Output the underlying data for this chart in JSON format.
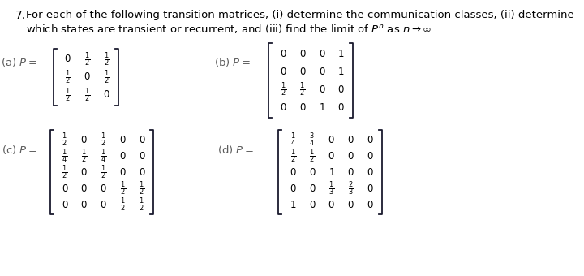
{
  "title_number": "7.",
  "title_text": "For each of the following transition matrices, (i) determine the communication classes, (ii) determine\nwhich states are transient or recurrent, and (iii) find the limit of $P^n$ as $n \\to \\infty$.",
  "bg_color": "#ffffff",
  "text_color": "#000000",
  "label_color": "#5c5c5c",
  "matrix_a_label": "(a) $P=$",
  "matrix_b_label": "(b) $P=$",
  "matrix_c_label": "(c) $P=$",
  "matrix_d_label": "(d) $P=$",
  "matrix_a": [
    [
      "0",
      "\\frac{1}{2}",
      "\\frac{1}{2}"
    ],
    [
      "\\frac{1}{2}",
      "0",
      "\\frac{1}{2}"
    ],
    [
      "\\frac{1}{2}",
      "\\frac{1}{2}",
      "0"
    ]
  ],
  "matrix_b": [
    [
      "0",
      "0",
      "0",
      "1"
    ],
    [
      "0",
      "0",
      "0",
      "1"
    ],
    [
      "\\frac{1}{2}",
      "\\frac{1}{2}",
      "0",
      "0"
    ],
    [
      "0",
      "0",
      "1",
      "0"
    ]
  ],
  "matrix_c": [
    [
      "\\frac{1}{2}",
      "0",
      "\\frac{1}{2}",
      "0",
      "0"
    ],
    [
      "\\frac{1}{4}",
      "\\frac{1}{2}",
      "\\frac{1}{4}",
      "0",
      "0"
    ],
    [
      "\\frac{1}{2}",
      "0",
      "\\frac{1}{2}",
      "0",
      "0"
    ],
    [
      "0",
      "0",
      "0",
      "\\frac{1}{2}",
      "\\frac{1}{2}"
    ],
    [
      "0",
      "0",
      "0",
      "\\frac{1}{2}",
      "\\frac{1}{2}"
    ]
  ],
  "matrix_d": [
    [
      "\\frac{1}{4}",
      "\\frac{3}{4}",
      "0",
      "0",
      "0"
    ],
    [
      "\\frac{1}{2}",
      "\\frac{1}{2}",
      "0",
      "0",
      "0"
    ],
    [
      "0",
      "0",
      "1",
      "0",
      "0"
    ],
    [
      "0",
      "0",
      "\\frac{1}{3}",
      "\\frac{2}{3}",
      "0"
    ],
    [
      "1",
      "0",
      "0",
      "0",
      "0"
    ]
  ]
}
